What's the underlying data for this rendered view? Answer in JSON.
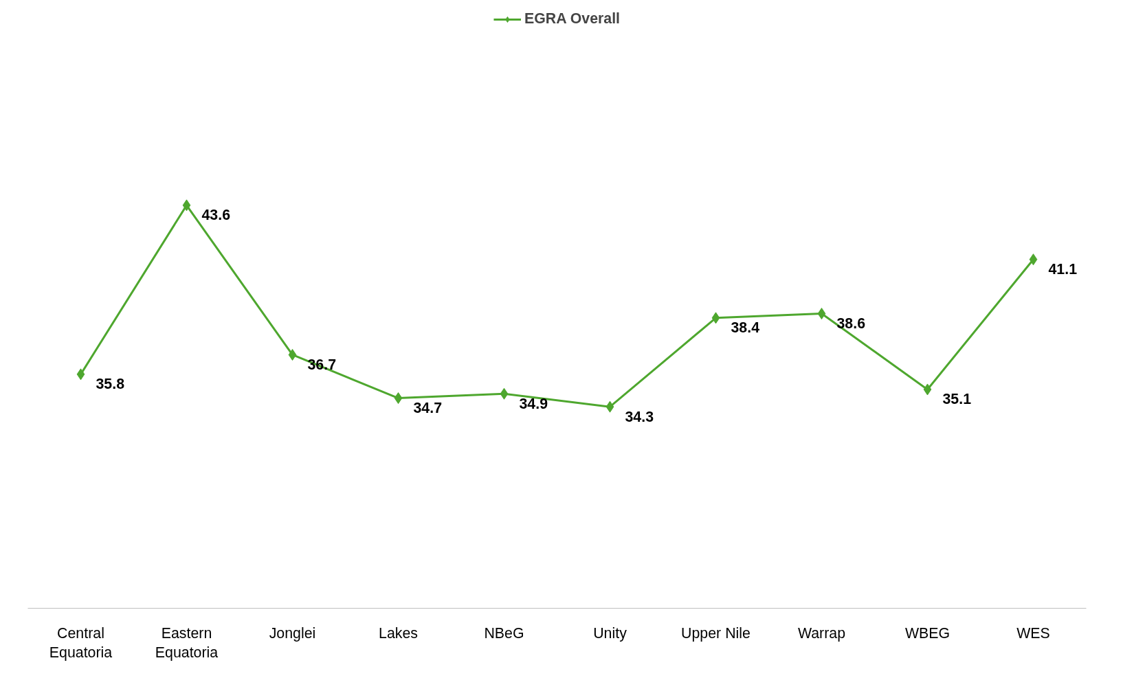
{
  "chart_data": {
    "type": "line",
    "categories": [
      "Central Equatoria",
      "Eastern Equatoria",
      "Jonglei",
      "Lakes",
      "NBeG",
      "Unity",
      "Upper Nile",
      "Warrap",
      "WBEG",
      "WES"
    ],
    "series": [
      {
        "name": "EGRA Overall",
        "color": "#4ea72e",
        "values": [
          35.8,
          43.6,
          36.7,
          34.7,
          34.9,
          34.3,
          38.4,
          38.6,
          35.1,
          41.1
        ]
      }
    ],
    "tick_labels": "x",
    "grid": false,
    "legend": "top",
    "marker": "diamond",
    "line_style": "solid",
    "data_labels": true
  }
}
